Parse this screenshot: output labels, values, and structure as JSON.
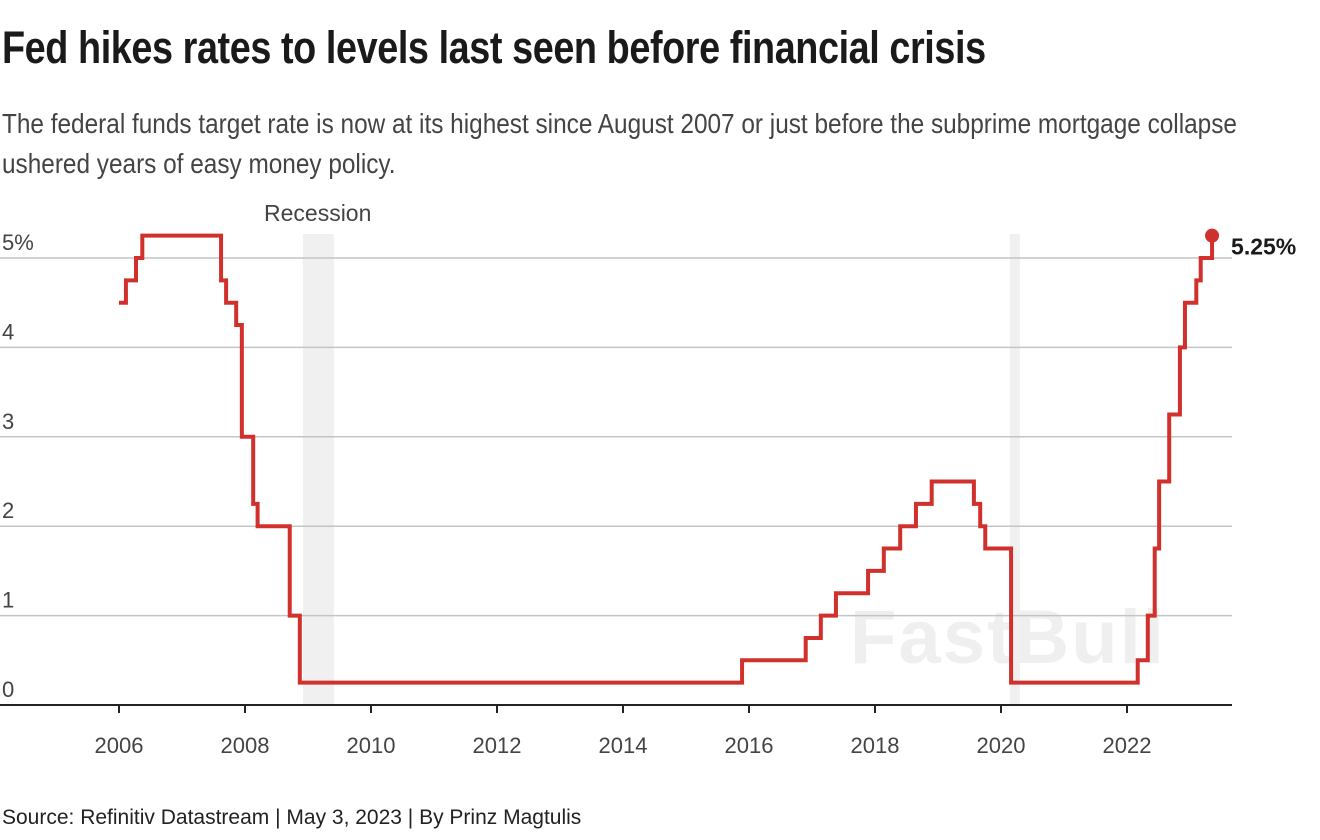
{
  "title": "Fed hikes rates to levels last seen before financial crisis",
  "subtitle": "The federal funds target rate is now at its highest since August 2007 or just before the subprime mortgage collapse ushered years of easy money policy.",
  "source": "Source: Refinitiv Datastream | May 3, 2023 | By Prinz Magtulis",
  "watermark": "FastBull",
  "chart_data": {
    "type": "line",
    "step": true,
    "title": "Fed hikes rates to levels last seen before financial crisis",
    "xlabel": "",
    "ylabel": "",
    "xlim": [
      2005.5,
      2024.2
    ],
    "ylim": [
      0,
      5.25
    ],
    "grid": true,
    "x_ticks": [
      "2006",
      "2008",
      "2010",
      "2012",
      "2014",
      "2016",
      "2018",
      "2020",
      "2022"
    ],
    "y_ticks": [
      "0",
      "1",
      "2",
      "3",
      "4",
      "5%"
    ],
    "line_color": "#d0312d",
    "shading_color": "#f0f0f0",
    "annotations": {
      "recession_label": "Recession",
      "end_label": "5.25%"
    },
    "recessions": [
      [
        2008.92,
        2009.41
      ],
      [
        2020.14,
        2020.3
      ]
    ],
    "series": [
      {
        "x": [
          2006.0,
          2006.11,
          2006.27,
          2006.37,
          2007.62,
          2007.7,
          2007.86,
          2007.95,
          2008.13,
          2008.2,
          2008.71,
          2008.87,
          2015.89,
          2016.9,
          2017.14,
          2017.38,
          2017.89,
          2018.14,
          2018.4,
          2018.65,
          2018.9,
          2019.57,
          2019.67,
          2019.75,
          2020.16,
          2022.17,
          2022.33,
          2022.44,
          2022.51,
          2022.67,
          2022.84,
          2022.92,
          2023.1,
          2023.17,
          2023.35
        ],
        "y": [
          4.5,
          4.75,
          5.0,
          5.25,
          4.75,
          4.5,
          4.25,
          3.0,
          2.25,
          2.0,
          1.0,
          0.25,
          0.5,
          0.75,
          1.0,
          1.25,
          1.5,
          1.75,
          2.0,
          2.25,
          2.5,
          2.25,
          2.0,
          1.75,
          0.25,
          0.5,
          1.0,
          1.75,
          2.5,
          3.25,
          4.0,
          4.5,
          4.75,
          5.0,
          5.25
        ]
      }
    ]
  }
}
